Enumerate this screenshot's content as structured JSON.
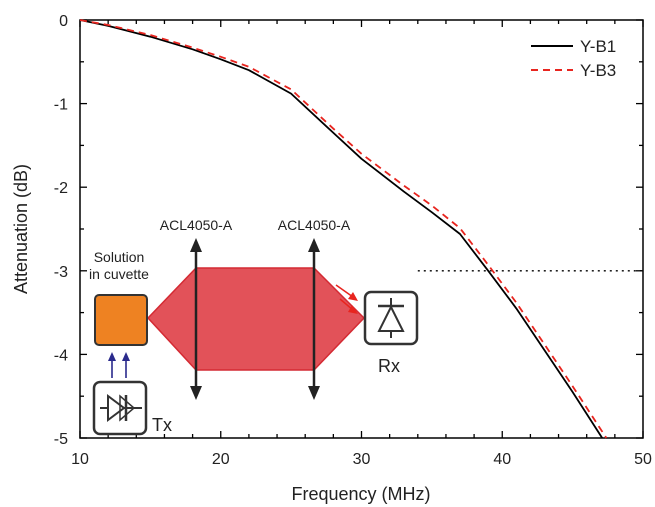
{
  "chart_data": {
    "type": "line",
    "title": "",
    "xlabel": "Frequency (MHz)",
    "ylabel": "Attenuation (dB)",
    "xlim": [
      10,
      50
    ],
    "ylim": [
      -5,
      0
    ],
    "x_ticks": [
      "10",
      "20",
      "30",
      "40",
      "50"
    ],
    "y_ticks": [
      "0",
      "-1",
      "-2",
      "-3",
      "-4",
      "-5"
    ],
    "grid": false,
    "legend_position": "top-right",
    "reference_line": {
      "y": -3,
      "style": "dotted",
      "x_start": 34
    },
    "series": [
      {
        "name": "Y-B1",
        "color": "#000000",
        "dash": "solid",
        "points": [
          [
            10,
            0
          ],
          [
            12,
            -0.07
          ],
          [
            15,
            -0.2
          ],
          [
            18,
            -0.35
          ],
          [
            20,
            -0.47
          ],
          [
            22,
            -0.6
          ],
          [
            25,
            -0.88
          ],
          [
            28,
            -1.35
          ],
          [
            30,
            -1.66
          ],
          [
            33,
            -2.05
          ],
          [
            35,
            -2.3
          ],
          [
            37,
            -2.56
          ],
          [
            39,
            -3.0
          ],
          [
            41,
            -3.45
          ],
          [
            43,
            -3.95
          ],
          [
            45,
            -4.45
          ],
          [
            47.1,
            -5.0
          ]
        ]
      },
      {
        "name": "Y-B3",
        "color": "#e8251f",
        "dash": "dashed",
        "points": [
          [
            10,
            0
          ],
          [
            12,
            -0.06
          ],
          [
            15,
            -0.18
          ],
          [
            18,
            -0.33
          ],
          [
            20,
            -0.44
          ],
          [
            22,
            -0.56
          ],
          [
            25,
            -0.83
          ],
          [
            28,
            -1.3
          ],
          [
            30,
            -1.6
          ],
          [
            33,
            -1.98
          ],
          [
            35,
            -2.22
          ],
          [
            37,
            -2.49
          ],
          [
            39,
            -2.93
          ],
          [
            41,
            -3.38
          ],
          [
            43,
            -3.88
          ],
          [
            45,
            -4.38
          ],
          [
            47.4,
            -5.0
          ]
        ]
      }
    ]
  },
  "inset": {
    "solution_label": "Solution",
    "cuvette_label": "in cuvette",
    "lens1_label": "ACL4050-A",
    "lens2_label": "ACL4050-A",
    "tx_label": "Tx",
    "rx_label": "Rx",
    "beam_color": "#e0434b",
    "cuvette_color": "#ee8222",
    "arrow_color": "#2a2a8c",
    "icons": [
      "transmitter-diode-icon",
      "receiver-photodiode-icon"
    ]
  }
}
